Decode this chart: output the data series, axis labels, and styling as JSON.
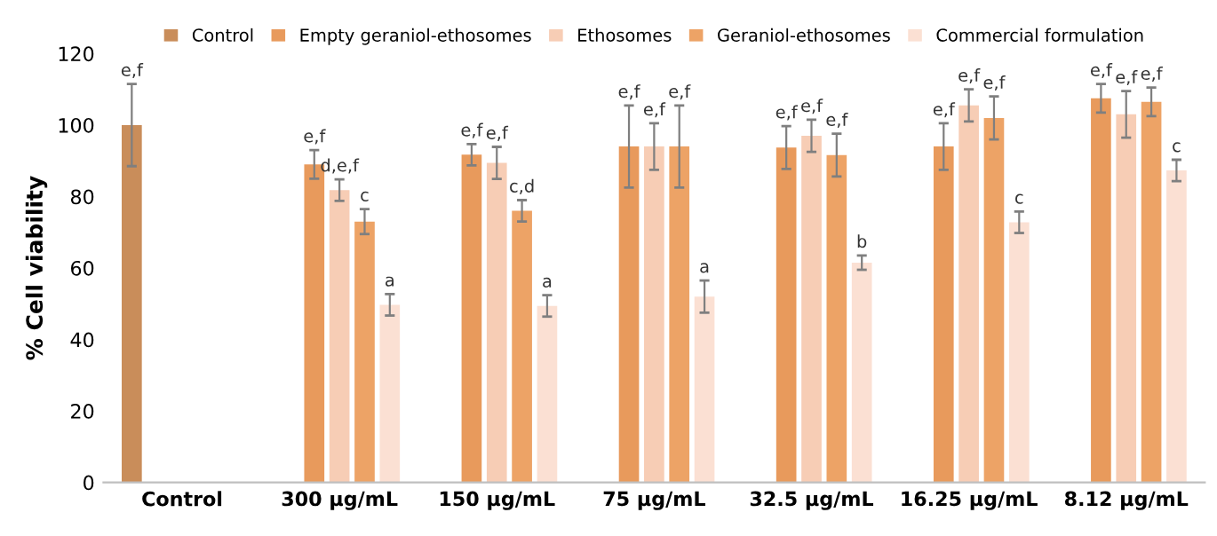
{
  "chart_data": {
    "type": "bar",
    "ylabel": "% Cell viability",
    "categories": [
      "Control",
      "300 µg/mL",
      "150 µg/mL",
      "75 µg/mL",
      "32.5 µg/mL",
      "16.25 µg/mL",
      "8.12 µg/mL"
    ],
    "series": [
      {
        "name": "Control",
        "color": "#c98d5a",
        "values": [
          100,
          null,
          null,
          null,
          null,
          null,
          null
        ],
        "errors": [
          11.5,
          null,
          null,
          null,
          null,
          null,
          null
        ],
        "value_labels": [
          "e,f",
          null,
          null,
          null,
          null,
          null,
          null
        ]
      },
      {
        "name": "Empty geraniol-ethosomes",
        "color": "#e89a5c",
        "values": [
          null,
          89,
          91.7,
          94,
          93.7,
          94,
          107.5
        ],
        "errors": [
          null,
          4,
          3,
          11.5,
          6,
          6.5,
          4
        ],
        "value_labels": [
          null,
          "e,f",
          "e,f",
          "e,f",
          "e,f",
          "e,f",
          "e,f"
        ]
      },
      {
        "name": "Ethosomes",
        "color": "#f7cdb5",
        "values": [
          null,
          81.8,
          89.4,
          94,
          97,
          105.5,
          103
        ],
        "errors": [
          null,
          3,
          4.5,
          6.5,
          4.5,
          4.5,
          6.5
        ],
        "value_labels": [
          null,
          "d,e,f",
          "e,f",
          "e,f",
          "e,f",
          "e,f",
          "e,f"
        ]
      },
      {
        "name": "Geraniol-ethosomes",
        "color": "#eda366",
        "values": [
          null,
          73,
          76,
          94,
          91.6,
          102,
          106.5
        ],
        "errors": [
          null,
          3.5,
          3,
          11.5,
          6,
          6,
          4
        ],
        "value_labels": [
          null,
          "c",
          "c,d",
          "e,f",
          "e,f",
          "e,f",
          "e,f"
        ]
      },
      {
        "name": "Commercial formulation",
        "color": "#fbe0d3",
        "values": [
          null,
          49.7,
          49.4,
          52,
          61.5,
          72.8,
          87.3
        ],
        "errors": [
          null,
          3,
          3,
          4.5,
          2,
          3,
          3
        ],
        "value_labels": [
          null,
          "a",
          "a",
          "a",
          "b",
          "c",
          "c"
        ]
      }
    ],
    "ylim": [
      0,
      120
    ],
    "yticks": [
      0,
      20,
      40,
      60,
      80,
      100,
      120
    ],
    "grid": false,
    "legend": "top"
  }
}
